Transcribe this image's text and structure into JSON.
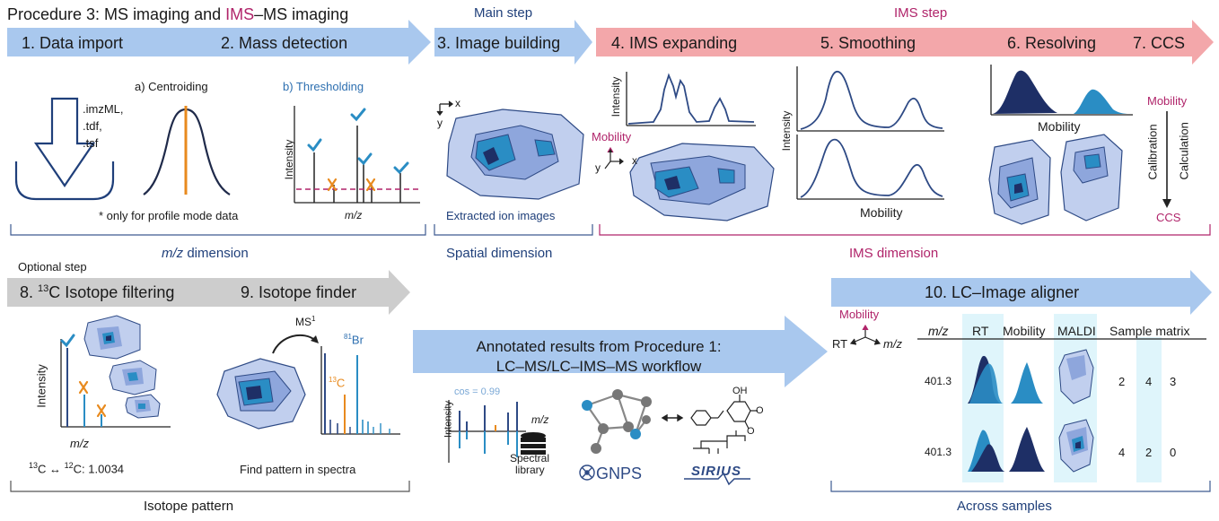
{
  "title": {
    "prefix": "Procedure 3: MS imaging and ",
    "ims": "IMS",
    "suffix": "–MS imaging"
  },
  "headers": {
    "main_step": "Main step",
    "ims_step": "IMS step",
    "optional_step": "Optional step"
  },
  "steps": {
    "s1": "1. Data import",
    "s2": "2. Mass detection",
    "s3": "3. Image building",
    "s4": "4. IMS expanding",
    "s5": "5. Smoothing",
    "s6": "6. Resolving",
    "s7": "7. CCS",
    "s8_pre": "8. ",
    "s8_sup": "13",
    "s8_post": "C Isotope filtering",
    "s9": "9. Isotope finder",
    "s10": "10. LC–Image aligner"
  },
  "import": {
    "ext1": ".imzML,",
    "ext2": ".tdf,",
    "ext3": ".tsf"
  },
  "mass_detection": {
    "centroiding": "a) Centroiding",
    "thresholding": "b) Thresholding",
    "note": "* only for profile mode data",
    "intensity": "Intensity",
    "mz": "m/z"
  },
  "image_building": {
    "x": "x",
    "y": "y",
    "caption": "Extracted ion images"
  },
  "ims": {
    "intensity": "Intensity",
    "mobility": "Mobility",
    "x": "x",
    "y": "y",
    "ccs": "CCS",
    "calibration": "Calibration",
    "calculation": "Calculation"
  },
  "dimensions": {
    "mz_prefix": "m/z",
    "mz_suffix": " dimension",
    "spatial": "Spatial dimension",
    "ims": "IMS dimension",
    "isotope": "Isotope pattern",
    "across": "Across samples"
  },
  "isotope": {
    "intensity": "Intensity",
    "mz": "m/z",
    "ms1_label": "MS",
    "ms1_sup": "1",
    "br_sup": "81",
    "br": "Br",
    "c_sup": "13",
    "c": "C",
    "ratio_sup1": "13",
    "ratio_mid": "C ↔ ",
    "ratio_sup2": "12",
    "ratio_end": "C: 1.0034",
    "find": "Find pattern in spectra"
  },
  "annotated": {
    "line1": "Annotated results from Procedure 1:",
    "line2": "LC–MS/LC–IMS–MS workflow",
    "cos": "cos = 0.99",
    "intensity": "Intensity",
    "mz": "m/z",
    "library1": "Spectral",
    "library2": "library",
    "gnps": "GNPS",
    "sirius": "SIRIUS",
    "oh": "OH",
    "o": "O"
  },
  "aligner": {
    "mobility": "Mobility",
    "rt": "RT",
    "mz": "m/z",
    "headers": [
      "m/z",
      "RT",
      "Mobility",
      "MALDI",
      "Sample matrix"
    ],
    "rows": [
      {
        "mz": "401.3",
        "m1": "2",
        "m2": "4",
        "m3": "3"
      },
      {
        "mz": "401.3",
        "m1": "4",
        "m2": "2",
        "m3": "0"
      }
    ]
  },
  "colors": {
    "arrow_blue": "#a9c8ee",
    "arrow_pink": "#f3a7aa",
    "arrow_gray": "#cdcdcd",
    "navy": "#1f3f7a",
    "magenta": "#b0246a",
    "orange": "#e88a1e",
    "teal": "#2a8dc4",
    "light_cyan": "#dff5fb"
  }
}
